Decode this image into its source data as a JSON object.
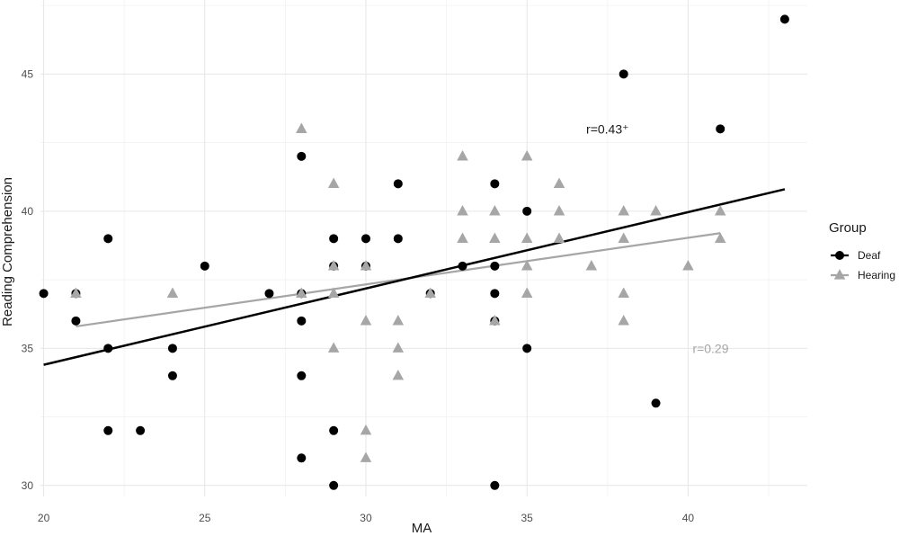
{
  "chart_data": {
    "type": "scatter",
    "title": "",
    "xlabel": "MA",
    "ylabel": "Reading Comprehension",
    "xlim": [
      19.9,
      43.7
    ],
    "ylim": [
      29.6,
      47.7
    ],
    "x_ticks": [
      20,
      25,
      30,
      35,
      40
    ],
    "y_ticks": [
      30,
      35,
      40,
      45
    ],
    "grid": true,
    "legend_position": "right",
    "legend_title": "Group",
    "series": [
      {
        "name": "Deaf",
        "marker": "circle",
        "color": "#000000",
        "points": [
          [
            20,
            37
          ],
          [
            21,
            37
          ],
          [
            21,
            36
          ],
          [
            22,
            39
          ],
          [
            22,
            35
          ],
          [
            22,
            32
          ],
          [
            23,
            32
          ],
          [
            24,
            35
          ],
          [
            24,
            34
          ],
          [
            25,
            38
          ],
          [
            27,
            37
          ],
          [
            28,
            42
          ],
          [
            28,
            37
          ],
          [
            28,
            36
          ],
          [
            28,
            34
          ],
          [
            28,
            31
          ],
          [
            29,
            39
          ],
          [
            29,
            38
          ],
          [
            29,
            32
          ],
          [
            29,
            30
          ],
          [
            30,
            39
          ],
          [
            30,
            38
          ],
          [
            31,
            41
          ],
          [
            31,
            39
          ],
          [
            32,
            37
          ],
          [
            33,
            38
          ],
          [
            34,
            41
          ],
          [
            34,
            38
          ],
          [
            34,
            37
          ],
          [
            34,
            36
          ],
          [
            34,
            30
          ],
          [
            35,
            40
          ],
          [
            35,
            35
          ],
          [
            38,
            45
          ],
          [
            39,
            33
          ],
          [
            41,
            43
          ],
          [
            43,
            47
          ]
        ],
        "fit_line": {
          "x": [
            20,
            43
          ],
          "y": [
            34.4,
            40.8
          ]
        },
        "annotation": "r=0.43⁺",
        "annotation_at": [
          37.5,
          43
        ]
      },
      {
        "name": "Hearing",
        "marker": "triangle",
        "color": "#a6a6a6",
        "points": [
          [
            21,
            37
          ],
          [
            24,
            37
          ],
          [
            28,
            43
          ],
          [
            28,
            37
          ],
          [
            29,
            41
          ],
          [
            29,
            38
          ],
          [
            29,
            37
          ],
          [
            29,
            35
          ],
          [
            30,
            38
          ],
          [
            30,
            36
          ],
          [
            30,
            32
          ],
          [
            30,
            31
          ],
          [
            31,
            36
          ],
          [
            31,
            35
          ],
          [
            31,
            34
          ],
          [
            32,
            37
          ],
          [
            33,
            42
          ],
          [
            33,
            40
          ],
          [
            33,
            39
          ],
          [
            34,
            40
          ],
          [
            34,
            39
          ],
          [
            34,
            36
          ],
          [
            35,
            42
          ],
          [
            35,
            39
          ],
          [
            35,
            38
          ],
          [
            35,
            37
          ],
          [
            36,
            41
          ],
          [
            36,
            40
          ],
          [
            36,
            39
          ],
          [
            37,
            38
          ],
          [
            38,
            40
          ],
          [
            38,
            39
          ],
          [
            38,
            37
          ],
          [
            38,
            36
          ],
          [
            39,
            40
          ],
          [
            40,
            38
          ],
          [
            41,
            40
          ],
          [
            41,
            39
          ]
        ],
        "fit_line": {
          "x": [
            21,
            41
          ],
          "y": [
            35.8,
            39.2
          ]
        },
        "annotation": "r=0.29",
        "annotation_at": [
          40.7,
          35
        ]
      }
    ]
  }
}
